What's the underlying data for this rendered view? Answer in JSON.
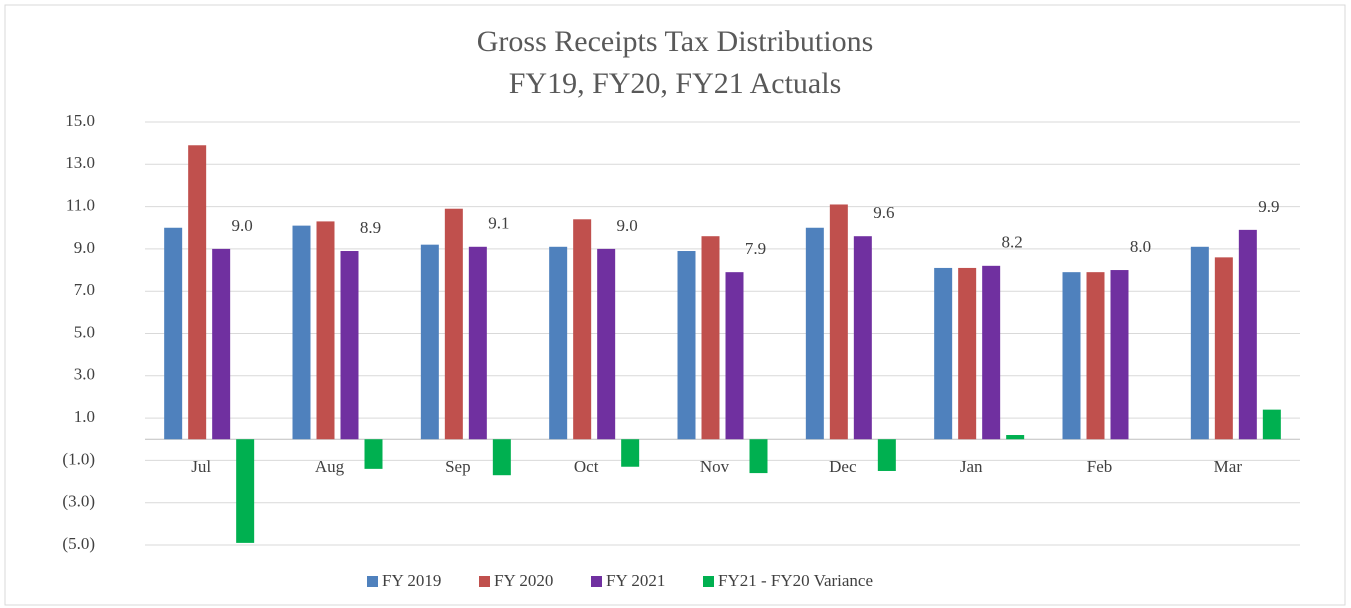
{
  "chart_data": {
    "type": "bar",
    "title": "Gross Receipts Tax Distributions",
    "subtitle": "FY19, FY20, FY21 Actuals",
    "categories": [
      "Jul",
      "Aug",
      "Sep",
      "Oct",
      "Nov",
      "Dec",
      "Jan",
      "Feb",
      "Mar"
    ],
    "series": [
      {
        "name": "FY 2019",
        "color": "#4f81bd",
        "values": [
          10.0,
          10.1,
          9.2,
          9.1,
          8.9,
          10.0,
          8.1,
          7.9,
          9.1
        ]
      },
      {
        "name": "FY 2020",
        "color": "#c0504d",
        "values": [
          13.9,
          10.3,
          10.9,
          10.4,
          9.6,
          11.1,
          8.1,
          7.9,
          8.6
        ]
      },
      {
        "name": "FY 2021",
        "color": "#7030a0",
        "values": [
          9.0,
          8.9,
          9.1,
          9.0,
          7.9,
          9.6,
          8.2,
          8.0,
          9.9
        ],
        "value_labels": [
          "9.0",
          "8.9",
          "9.1",
          "9.0",
          "7.9",
          "9.6",
          "8.2",
          "8.0",
          "9.9"
        ]
      },
      {
        "name": "FY21 - FY20 Variance",
        "color": "#00b050",
        "values": [
          -4.9,
          -1.4,
          -1.7,
          -1.3,
          -1.6,
          -1.5,
          0.2,
          0,
          1.4
        ]
      }
    ],
    "ylim": [
      -5,
      15
    ],
    "yticks": [
      {
        "value": 15,
        "label": "15.0"
      },
      {
        "value": 13,
        "label": "13.0"
      },
      {
        "value": 11,
        "label": "11.0"
      },
      {
        "value": 9,
        "label": "9.0"
      },
      {
        "value": 7,
        "label": "7.0"
      },
      {
        "value": 5,
        "label": "5.0"
      },
      {
        "value": 3,
        "label": "3.0"
      },
      {
        "value": 1,
        "label": "1.0"
      },
      {
        "value": -1,
        "label": "(1.0)"
      },
      {
        "value": -3,
        "label": "(3.0)"
      },
      {
        "value": -5,
        "label": "(5.0)"
      }
    ],
    "grid": true,
    "legend": "bottom"
  }
}
